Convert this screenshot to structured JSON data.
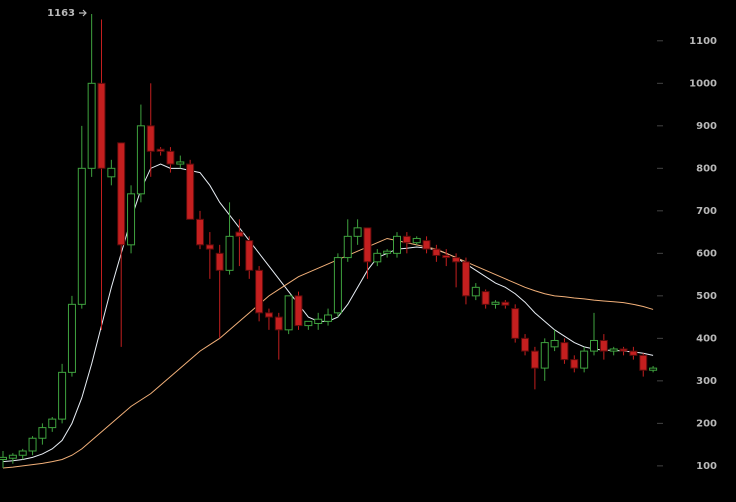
{
  "chart_data": {
    "type": "candlestick",
    "annotation": "1163",
    "up_color": "#3fa33f",
    "down_color": "#c41f1f",
    "open": [
      115,
      118,
      125,
      135,
      165,
      190,
      210,
      320,
      480,
      800,
      1000,
      780,
      860,
      620,
      740,
      900,
      845,
      840,
      810,
      810,
      680,
      620,
      600,
      560,
      650,
      630,
      560,
      460,
      450,
      420,
      500,
      430,
      435,
      440,
      460,
      590,
      640,
      660,
      580,
      600,
      600,
      640,
      625,
      630,
      610,
      595,
      590,
      580,
      500,
      510,
      480,
      485,
      470,
      400,
      370,
      330,
      380,
      390,
      350,
      330,
      370,
      395,
      370,
      375,
      370,
      360,
      325
    ],
    "high": [
      135,
      130,
      140,
      170,
      200,
      215,
      340,
      500,
      900,
      1163,
      1150,
      820,
      860,
      760,
      950,
      1000,
      850,
      850,
      830,
      820,
      700,
      650,
      620,
      720,
      680,
      640,
      570,
      470,
      460,
      500,
      510,
      440,
      460,
      470,
      600,
      680,
      680,
      660,
      610,
      610,
      650,
      650,
      640,
      640,
      620,
      610,
      600,
      590,
      530,
      515,
      490,
      490,
      480,
      410,
      380,
      400,
      420,
      400,
      360,
      380,
      460,
      410,
      380,
      380,
      380,
      365,
      335
    ],
    "low": [
      95,
      105,
      115,
      125,
      150,
      180,
      200,
      310,
      470,
      780,
      420,
      760,
      380,
      600,
      720,
      780,
      830,
      790,
      800,
      680,
      610,
      540,
      400,
      550,
      570,
      540,
      440,
      420,
      350,
      410,
      420,
      420,
      420,
      430,
      450,
      580,
      620,
      540,
      570,
      590,
      590,
      600,
      620,
      600,
      580,
      570,
      520,
      480,
      490,
      470,
      470,
      470,
      390,
      360,
      280,
      300,
      370,
      340,
      320,
      320,
      360,
      350,
      360,
      360,
      350,
      310,
      320
    ],
    "close": [
      120,
      125,
      135,
      165,
      190,
      210,
      320,
      480,
      800,
      1000,
      800,
      800,
      620,
      740,
      900,
      840,
      840,
      810,
      815,
      680,
      620,
      610,
      560,
      640,
      640,
      560,
      460,
      450,
      420,
      500,
      430,
      440,
      445,
      455,
      590,
      640,
      660,
      580,
      600,
      605,
      640,
      625,
      635,
      610,
      595,
      590,
      580,
      500,
      520,
      480,
      485,
      478,
      400,
      370,
      330,
      390,
      395,
      350,
      330,
      370,
      395,
      370,
      375,
      370,
      360,
      325,
      330
    ],
    "moving_averages": [
      {
        "color": "#e8eef5",
        "values": [
          110,
          112,
          115,
          120,
          128,
          140,
          160,
          200,
          260,
          340,
          430,
          520,
          600,
          680,
          750,
          800,
          810,
          800,
          800,
          795,
          790,
          760,
          720,
          690,
          660,
          630,
          600,
          570,
          540,
          510,
          480,
          450,
          440,
          440,
          450,
          480,
          520,
          560,
          590,
          600,
          610,
          612,
          615,
          612,
          608,
          600,
          590,
          575,
          560,
          545,
          530,
          520,
          505,
          485,
          460,
          440,
          420,
          405,
          390,
          380,
          375,
          372,
          372,
          370,
          368,
          365,
          360
        ]
      },
      {
        "color": "#f2b079",
        "values": [
          95,
          97,
          100,
          103,
          106,
          110,
          115,
          125,
          140,
          160,
          180,
          200,
          220,
          240,
          255,
          270,
          290,
          310,
          330,
          350,
          370,
          385,
          400,
          420,
          440,
          460,
          480,
          500,
          515,
          530,
          545,
          555,
          565,
          575,
          585,
          595,
          605,
          615,
          625,
          635,
          630,
          625,
          620,
          615,
          610,
          600,
          590,
          580,
          570,
          560,
          550,
          540,
          530,
          520,
          512,
          505,
          500,
          498,
          495,
          493,
          490,
          488,
          486,
          484,
          480,
          475,
          468
        ]
      }
    ],
    "ylim": [
      15,
      1196
    ],
    "yticks": [
      100,
      200,
      300,
      400,
      500,
      600,
      700,
      800,
      900,
      1000,
      1100
    ]
  }
}
